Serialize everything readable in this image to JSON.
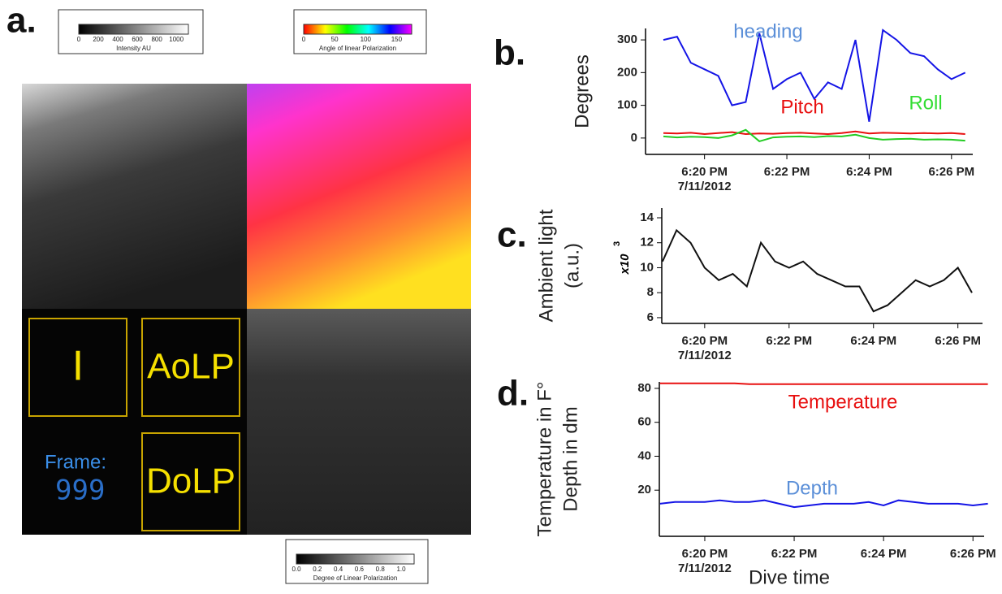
{
  "panel_labels": [
    "a.",
    "b.",
    "c.",
    "d."
  ],
  "image_panel": {
    "colorbars": [
      {
        "ticks": [
          "0",
          "200",
          "400",
          "600",
          "800",
          "1000"
        ],
        "label": "Intensity AU"
      },
      {
        "ticks": [
          "0",
          "50",
          "100",
          "150"
        ],
        "label": "Angle of linear Polarization"
      },
      {
        "ticks": [
          "0.0",
          "0.2",
          "0.4",
          "0.6",
          "0.8",
          "1.0"
        ],
        "label": "Degree of Linear Polarization"
      }
    ],
    "boxes": [
      "I",
      "AoLP",
      "DoLP"
    ],
    "frame_label": "Frame:",
    "frame_number": "999"
  },
  "chart_data": [
    {
      "type": "line",
      "ylabel": [
        "Degrees"
      ],
      "x": [
        "18:19:00",
        "18:19:20",
        "18:19:40",
        "18:20:00",
        "18:20:20",
        "18:20:40",
        "18:21:00",
        "18:21:20",
        "18:21:40",
        "18:22:00",
        "18:22:20",
        "18:22:40",
        "18:23:00",
        "18:23:20",
        "18:23:40",
        "18:24:00",
        "18:24:20",
        "18:24:40",
        "18:25:00",
        "18:25:20",
        "18:25:40",
        "18:26:00",
        "18:26:20"
      ],
      "series": [
        {
          "name": "heading",
          "color": "#1414e6",
          "label_color": "#5b8fd8",
          "values": [
            300,
            310,
            230,
            210,
            190,
            100,
            110,
            320,
            150,
            180,
            200,
            120,
            170,
            150,
            300,
            50,
            330,
            300,
            260,
            250,
            210,
            180,
            200
          ]
        },
        {
          "name": "Pitch",
          "color": "#e81010",
          "label_color": "#e81010",
          "values": [
            15,
            14,
            16,
            12,
            15,
            18,
            12,
            14,
            13,
            15,
            16,
            14,
            12,
            15,
            20,
            14,
            16,
            15,
            14,
            15,
            14,
            15,
            12
          ]
        },
        {
          "name": "Roll",
          "color": "#22cc22",
          "label_color": "#33dd33",
          "values": [
            5,
            2,
            4,
            3,
            0,
            8,
            25,
            -10,
            2,
            4,
            5,
            3,
            6,
            5,
            10,
            0,
            -5,
            -3,
            -2,
            -5,
            -4,
            -5,
            -8
          ]
        }
      ],
      "xlim": [
        "18:18:34",
        "18:26:31"
      ],
      "xticks": [
        {
          "value": "18:20:00",
          "label": "6:20 PM"
        },
        {
          "value": "18:22:00",
          "label": "6:22 PM"
        },
        {
          "value": "18:24:00",
          "label": "6:24 PM"
        },
        {
          "value": "18:26:00",
          "label": "6:26 PM"
        }
      ],
      "date_label": "7/11/2012",
      "ylim": [
        -50,
        335
      ],
      "yticks": [
        0,
        100,
        200,
        300
      ]
    },
    {
      "type": "line",
      "ylabel": [
        "Ambient light",
        "(a.u.)"
      ],
      "y_multiplier": "x10",
      "y_multiplier_exponent": "3",
      "x": [
        "18:19:00",
        "18:19:20",
        "18:19:40",
        "18:20:00",
        "18:20:20",
        "18:20:40",
        "18:21:00",
        "18:21:20",
        "18:21:40",
        "18:22:00",
        "18:22:20",
        "18:22:40",
        "18:23:00",
        "18:23:20",
        "18:23:40",
        "18:24:00",
        "18:24:20",
        "18:24:40",
        "18:25:00",
        "18:25:20",
        "18:25:40",
        "18:26:00",
        "18:26:20"
      ],
      "series": [
        {
          "name": "Ambient light",
          "color": "#111111",
          "values": [
            10.5,
            13,
            12,
            10,
            9,
            9.5,
            8.5,
            12,
            10.5,
            10,
            10.5,
            9.5,
            9,
            8.5,
            8.5,
            6.5,
            7,
            8,
            9,
            8.5,
            9,
            10,
            8
          ]
        }
      ],
      "xlim": [
        "18:18:59",
        "18:26:35"
      ],
      "xticks": [
        {
          "value": "18:20:00",
          "label": "6:20 PM"
        },
        {
          "value": "18:22:00",
          "label": "6:22 PM"
        },
        {
          "value": "18:24:00",
          "label": "6:24 PM"
        },
        {
          "value": "18:26:00",
          "label": "6:26 PM"
        }
      ],
      "date_label": "7/11/2012",
      "ylim": [
        5.54,
        14.78
      ],
      "yticks": [
        6,
        8,
        10,
        12,
        14
      ]
    },
    {
      "type": "line",
      "ylabel": [
        "Temperature in F°",
        "Depth in dm"
      ],
      "xlabel": "Dive time",
      "x": [
        "18:19:00",
        "18:19:20",
        "18:19:40",
        "18:20:00",
        "18:20:20",
        "18:20:40",
        "18:21:00",
        "18:21:20",
        "18:21:40",
        "18:22:00",
        "18:22:20",
        "18:22:40",
        "18:23:00",
        "18:23:20",
        "18:23:40",
        "18:24:00",
        "18:24:20",
        "18:24:40",
        "18:25:00",
        "18:25:20",
        "18:25:40",
        "18:26:00",
        "18:26:20"
      ],
      "series": [
        {
          "name": "Temperature",
          "color": "#e81010",
          "label_color": "#e81010",
          "values": [
            83,
            83,
            83,
            83,
            83,
            83,
            82.5,
            82.5,
            82.5,
            82.5,
            82.5,
            82.5,
            82.5,
            82.5,
            82.5,
            82.5,
            82.5,
            82.5,
            82.5,
            82.5,
            82.5,
            82.5,
            82.5
          ]
        },
        {
          "name": "Depth",
          "color": "#1414e6",
          "label_color": "#5b8fd8",
          "values": [
            12,
            13,
            13,
            13,
            14,
            13,
            13,
            14,
            12,
            10,
            11,
            12,
            12,
            12,
            13,
            11,
            14,
            13,
            12,
            12,
            12,
            11,
            12
          ]
        }
      ],
      "xlim": [
        "18:18:59",
        "18:26:15"
      ],
      "xticks": [
        {
          "value": "18:20:00",
          "label": "6:20 PM"
        },
        {
          "value": "18:22:00",
          "label": "6:22 PM"
        },
        {
          "value": "18:24:00",
          "label": "6:24 PM"
        },
        {
          "value": "18:26:00",
          "label": "6:26 PM"
        }
      ],
      "date_label": "7/11/2012",
      "ylim": [
        -7.2,
        83.8
      ],
      "yticks": [
        20,
        40,
        60,
        80
      ]
    }
  ]
}
